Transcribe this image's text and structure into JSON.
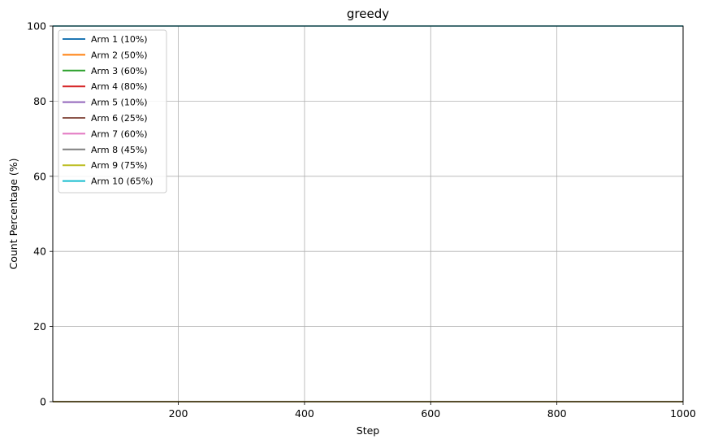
{
  "chart_data": {
    "type": "line",
    "title": "greedy",
    "xlabel": "Step",
    "ylabel": "Count Percentage (%)",
    "xlim": [
      1,
      1000
    ],
    "ylim": [
      0,
      100
    ],
    "xticks": [
      200,
      400,
      600,
      800,
      1000
    ],
    "xtick_labels": [
      "200",
      "400",
      "600",
      "800",
      "1000"
    ],
    "yticks": [
      0,
      20,
      40,
      60,
      80,
      100
    ],
    "ytick_labels": [
      "0",
      "20",
      "40",
      "60",
      "80",
      "100"
    ],
    "grid": true,
    "legend_position": "top-left",
    "series": [
      {
        "name": "Arm 1 (10%)",
        "color": "#1f77b4",
        "x": [
          1,
          1000
        ],
        "y": [
          0,
          0
        ]
      },
      {
        "name": "Arm 2 (50%)",
        "color": "#ff7f0e",
        "x": [
          1,
          1000
        ],
        "y": [
          0,
          0
        ]
      },
      {
        "name": "Arm 3 (60%)",
        "color": "#2ca02c",
        "x": [
          1,
          1000
        ],
        "y": [
          0,
          0
        ]
      },
      {
        "name": "Arm 4 (80%)",
        "color": "#d62728",
        "x": [
          1,
          1000
        ],
        "y": [
          0,
          0
        ]
      },
      {
        "name": "Arm 5 (10%)",
        "color": "#9467bd",
        "x": [
          1,
          1000
        ],
        "y": [
          0,
          0
        ]
      },
      {
        "name": "Arm 6 (25%)",
        "color": "#8c564b",
        "x": [
          1,
          1000
        ],
        "y": [
          0,
          0
        ]
      },
      {
        "name": "Arm 7 (60%)",
        "color": "#e377c2",
        "x": [
          1,
          1000
        ],
        "y": [
          0,
          0
        ]
      },
      {
        "name": "Arm 8 (45%)",
        "color": "#7f7f7f",
        "x": [
          1,
          1000
        ],
        "y": [
          0,
          0
        ]
      },
      {
        "name": "Arm 9 (75%)",
        "color": "#bcbd22",
        "x": [
          1,
          1000
        ],
        "y": [
          0,
          0
        ]
      },
      {
        "name": "Arm 10 (65%)",
        "color": "#17becf",
        "x": [
          1,
          1000
        ],
        "y": [
          100,
          100
        ]
      }
    ]
  }
}
